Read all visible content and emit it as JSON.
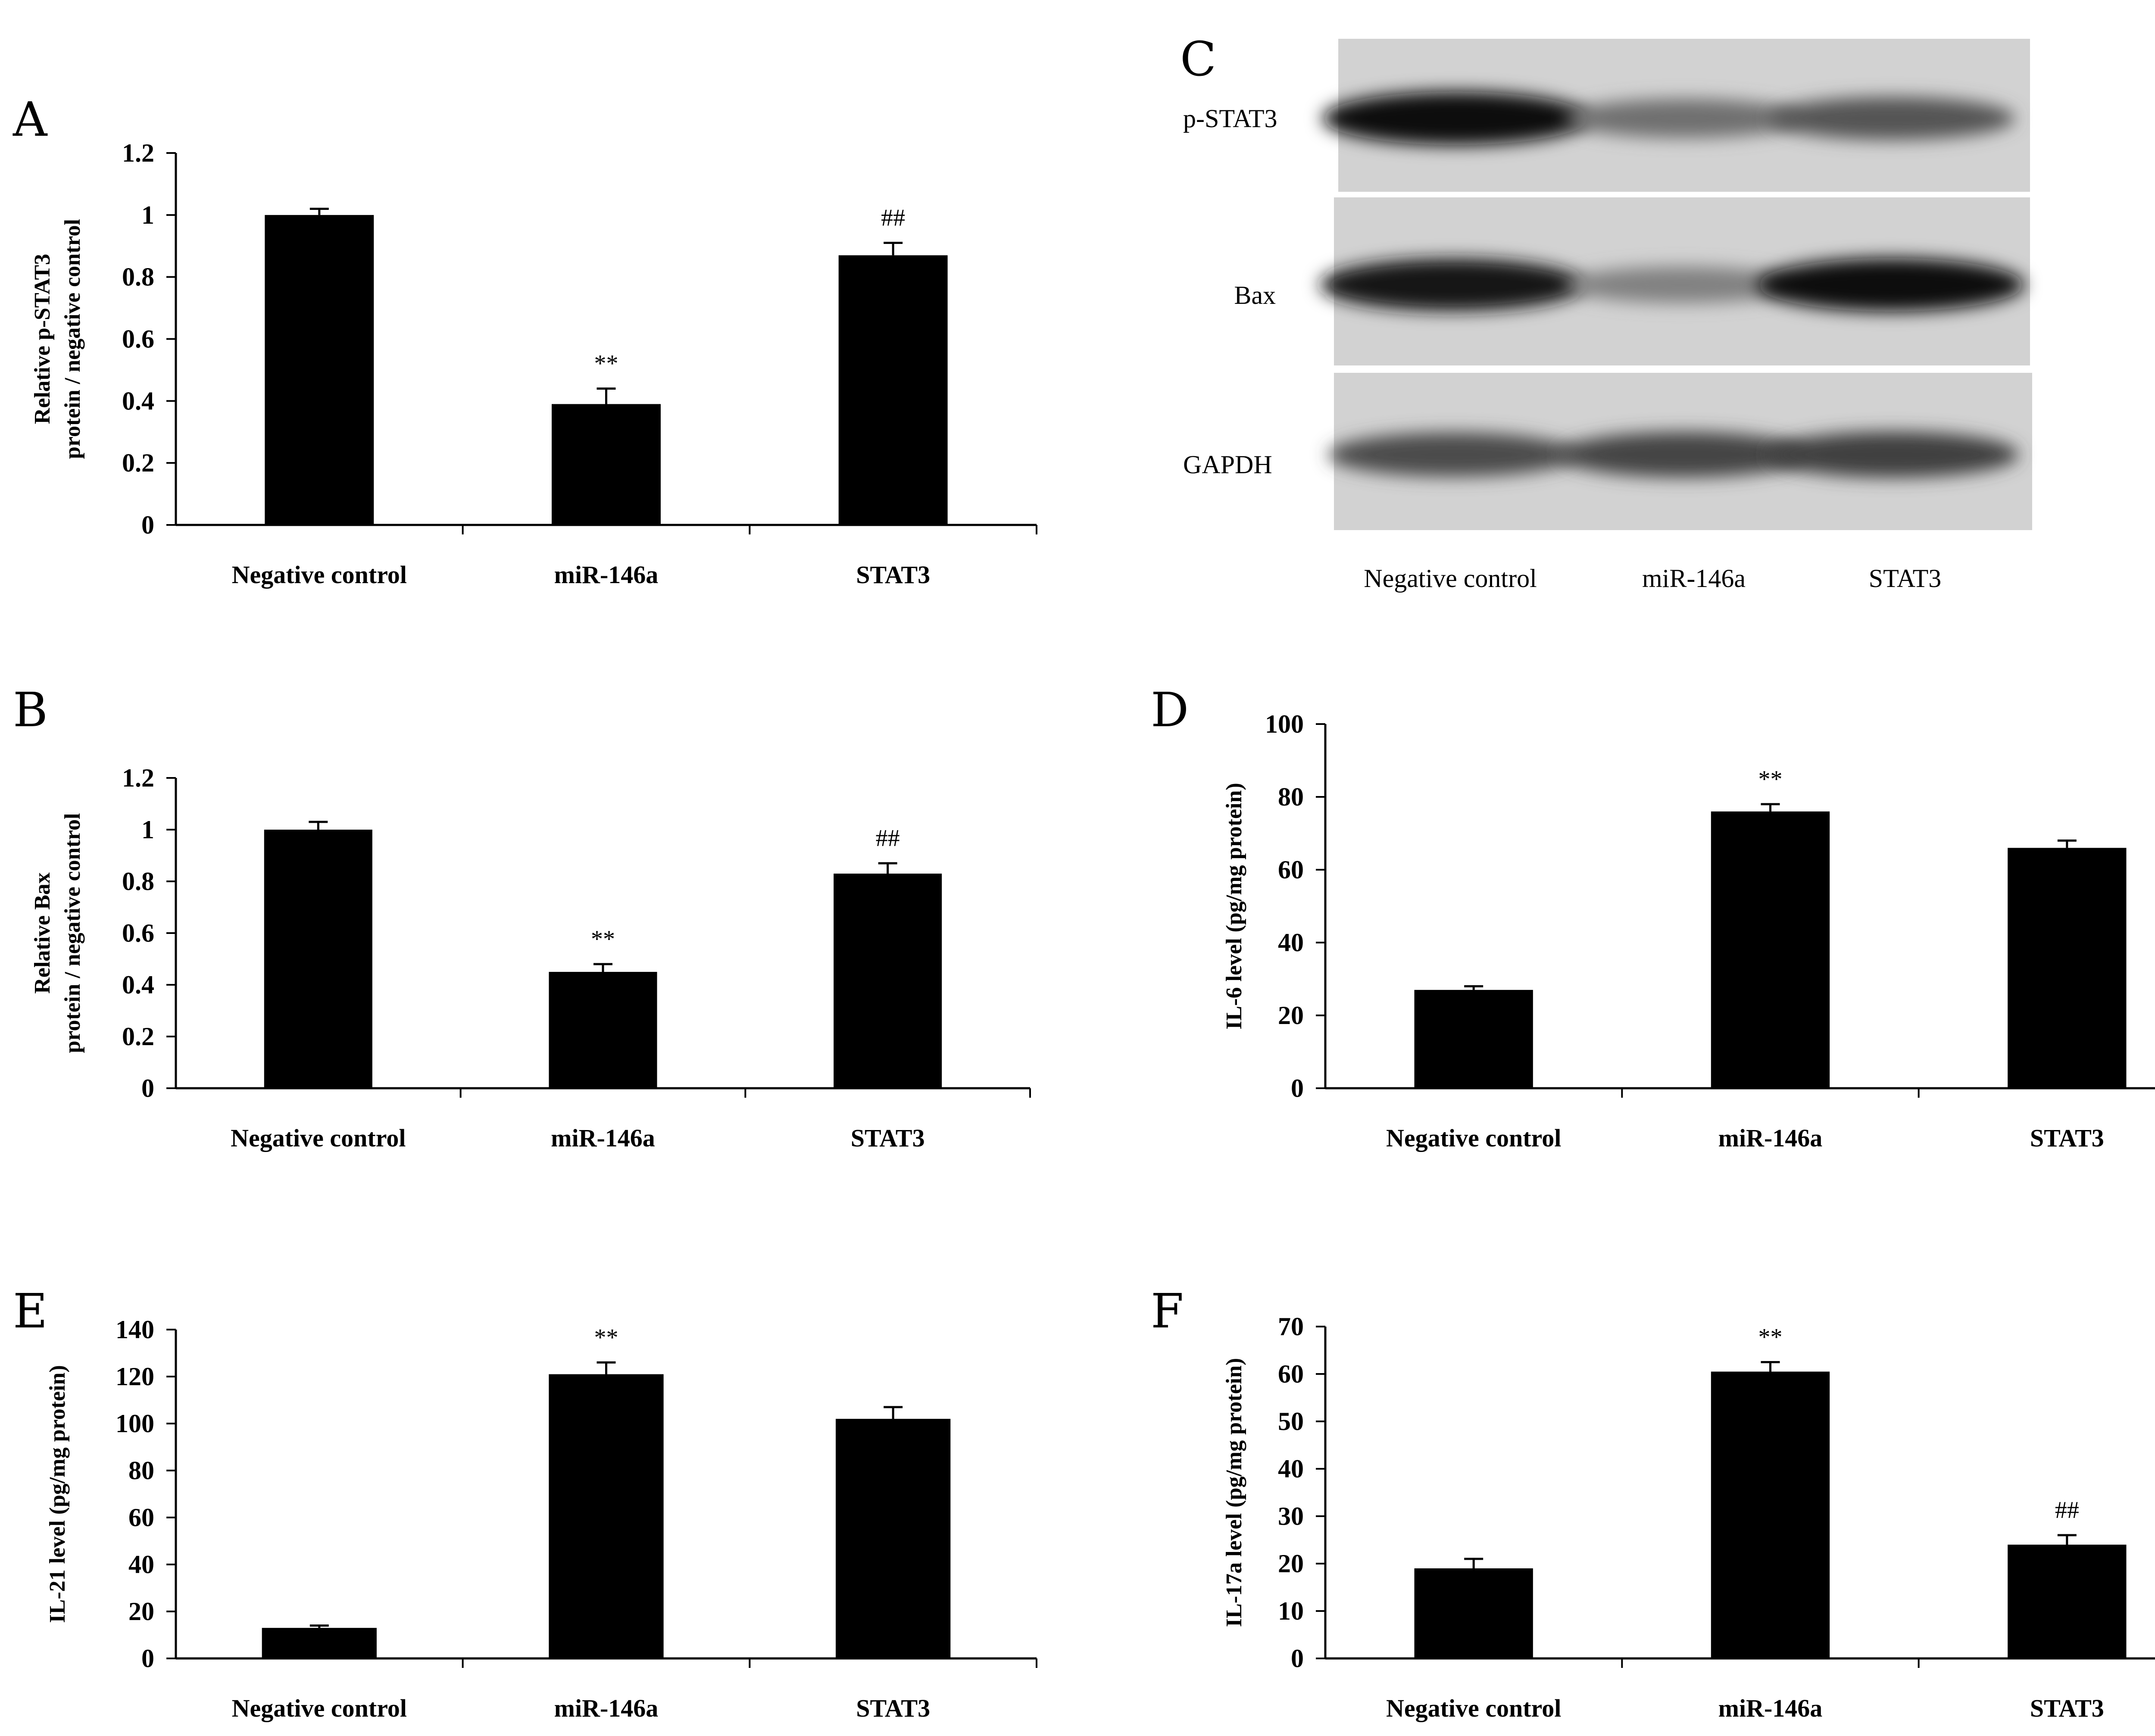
{
  "chart_data": [
    {
      "panel": "A",
      "type": "bar",
      "categories": [
        "Negative control",
        "miR-146a",
        "STAT3"
      ],
      "values": [
        1.0,
        0.39,
        0.87
      ],
      "errors": [
        0.02,
        0.05,
        0.04
      ],
      "significance": [
        "",
        "**",
        "##"
      ],
      "ylabel_lines": [
        "Relative p-STAT3",
        "protein / negative control"
      ],
      "xlabel": "",
      "ylim": [
        0,
        1.2
      ],
      "yticks": [
        "0",
        "0.2",
        "0.4",
        "0.6",
        "0.8",
        "1",
        "1.2"
      ]
    },
    {
      "panel": "B",
      "type": "bar",
      "categories": [
        "Negative control",
        "miR-146a",
        "STAT3"
      ],
      "values": [
        1.0,
        0.45,
        0.83
      ],
      "errors": [
        0.03,
        0.03,
        0.04
      ],
      "significance": [
        "",
        "**",
        "##"
      ],
      "ylabel_lines": [
        "Relative Bax",
        "protein / negative control"
      ],
      "xlabel": "",
      "ylim": [
        0,
        1.2
      ],
      "yticks": [
        "0",
        "0.2",
        "0.4",
        "0.6",
        "0.8",
        "1",
        "1.2"
      ]
    },
    {
      "panel": "D",
      "type": "bar",
      "categories": [
        "Negative control",
        "miR-146a",
        "STAT3"
      ],
      "values": [
        27,
        76,
        66
      ],
      "errors": [
        1,
        2,
        2
      ],
      "significance": [
        "",
        "**",
        ""
      ],
      "ylabel_lines": [
        "IL-6 level (pg/mg protein)"
      ],
      "xlabel": "",
      "ylim": [
        0,
        100
      ],
      "yticks": [
        "0",
        "20",
        "40",
        "60",
        "80",
        "100"
      ]
    },
    {
      "panel": "E",
      "type": "bar",
      "categories": [
        "Negative control",
        "miR-146a",
        "STAT3"
      ],
      "values": [
        13,
        121,
        102
      ],
      "errors": [
        1,
        5,
        5
      ],
      "significance": [
        "",
        "**",
        ""
      ],
      "ylabel_lines": [
        "IL-21 level (pg/mg protein)"
      ],
      "xlabel": "",
      "ylim": [
        0,
        140
      ],
      "yticks": [
        "0",
        "20",
        "40",
        "60",
        "80",
        "100",
        "120",
        "140"
      ]
    },
    {
      "panel": "F",
      "type": "bar",
      "categories": [
        "Negative control",
        "miR-146a",
        "STAT3"
      ],
      "values": [
        19,
        60.5,
        24
      ],
      "errors": [
        2,
        2,
        2
      ],
      "significance": [
        "",
        "**",
        "##"
      ],
      "ylabel_lines": [
        "IL-17a level (pg/mg protein)"
      ],
      "xlabel": "",
      "ylim": [
        0,
        70
      ],
      "yticks": [
        "0",
        "10",
        "20",
        "30",
        "40",
        "50",
        "60",
        "70"
      ]
    }
  ],
  "blot": {
    "panel": "C",
    "rows": [
      "p-STAT3",
      "Bax",
      "GAPDH"
    ],
    "lanes": [
      "Negative control",
      "miR-146a",
      "STAT3"
    ],
    "intensity": [
      [
        1.0,
        0.45,
        0.6
      ],
      [
        0.95,
        0.35,
        1.0
      ],
      [
        0.65,
        0.7,
        0.72
      ]
    ]
  }
}
